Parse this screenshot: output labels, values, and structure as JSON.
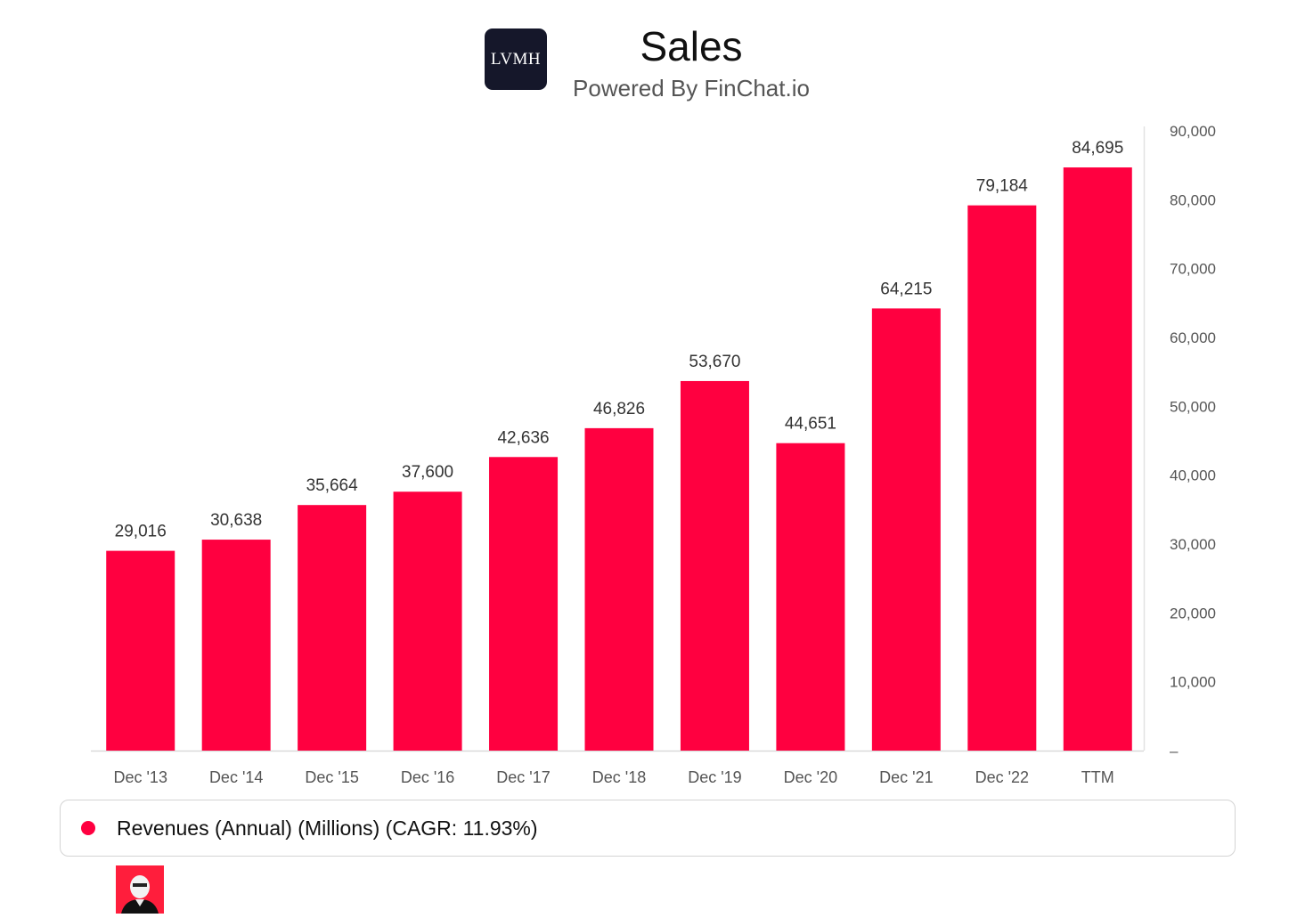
{
  "header": {
    "logo_text": "LVMH",
    "title": "Sales",
    "subtitle": "Powered By FinChat.io"
  },
  "legend": {
    "label": "Revenues (Annual) (Millions) (CAGR: 11.93%)",
    "color": "#ff0040"
  },
  "colors": {
    "bar": "#ff0040",
    "axis_text": "#555555",
    "label_text": "#333333"
  },
  "chart_data": {
    "type": "bar",
    "title": "Sales",
    "subtitle": "Powered By FinChat.io",
    "categories": [
      "Dec '13",
      "Dec '14",
      "Dec '15",
      "Dec '16",
      "Dec '17",
      "Dec '18",
      "Dec '19",
      "Dec '20",
      "Dec '21",
      "Dec '22",
      "TTM"
    ],
    "series": [
      {
        "name": "Revenues (Annual) (Millions) (CAGR: 11.93%)",
        "values": [
          29016,
          30638,
          35664,
          37600,
          42636,
          46826,
          53670,
          44651,
          64215,
          79184,
          84695
        ],
        "labels": [
          "29,016",
          "30,638",
          "35,664",
          "37,600",
          "42,636",
          "46,826",
          "53,670",
          "44,651",
          "64,215",
          "79,184",
          "84,695"
        ]
      }
    ],
    "xlabel": "",
    "ylabel": "",
    "ylim": [
      0,
      90000
    ],
    "yticks": [
      0,
      10000,
      20000,
      30000,
      40000,
      50000,
      60000,
      70000,
      80000,
      90000
    ],
    "ytick_labels": [
      "–",
      "10,000",
      "20,000",
      "30,000",
      "40,000",
      "50,000",
      "60,000",
      "70,000",
      "80,000",
      "90,000"
    ],
    "y_axis_position": "right",
    "grid": false,
    "legend_position": "bottom"
  }
}
